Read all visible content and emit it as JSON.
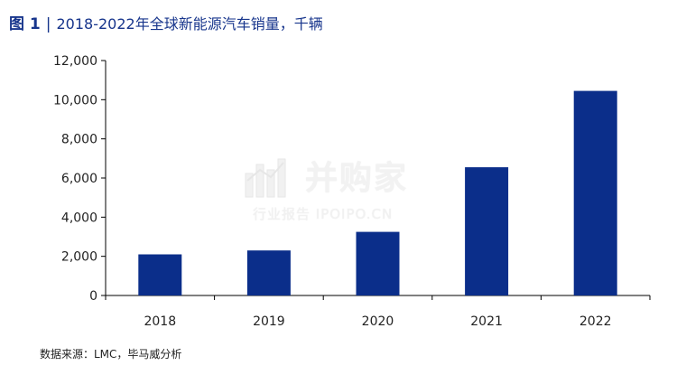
{
  "header": {
    "fig_label": "图 1",
    "separator": "|",
    "title": "2018-2022年全球新能源汽车销量，千辆"
  },
  "source": "数据来源：LMC，毕马威分析",
  "watermark": {
    "main": "并购家",
    "sub": "行业报告 IPOIPO.CN"
  },
  "colors": {
    "bar": "#0b2e8a",
    "title": "#17358c"
  },
  "chart_data": {
    "type": "bar",
    "title": "2018-2022年全球新能源汽车销量，千辆",
    "xlabel": "",
    "ylabel": "",
    "categories": [
      "2018",
      "2019",
      "2020",
      "2021",
      "2022"
    ],
    "values": [
      2100,
      2300,
      3250,
      6550,
      10450
    ],
    "ylim": [
      0,
      12000
    ],
    "yticks": [
      0,
      2000,
      4000,
      6000,
      8000,
      10000,
      12000
    ],
    "ytick_labels": [
      "0",
      "2,000",
      "4,000",
      "6,000",
      "8,000",
      "10,000",
      "12,000"
    ],
    "grid": false,
    "legend": "none"
  }
}
